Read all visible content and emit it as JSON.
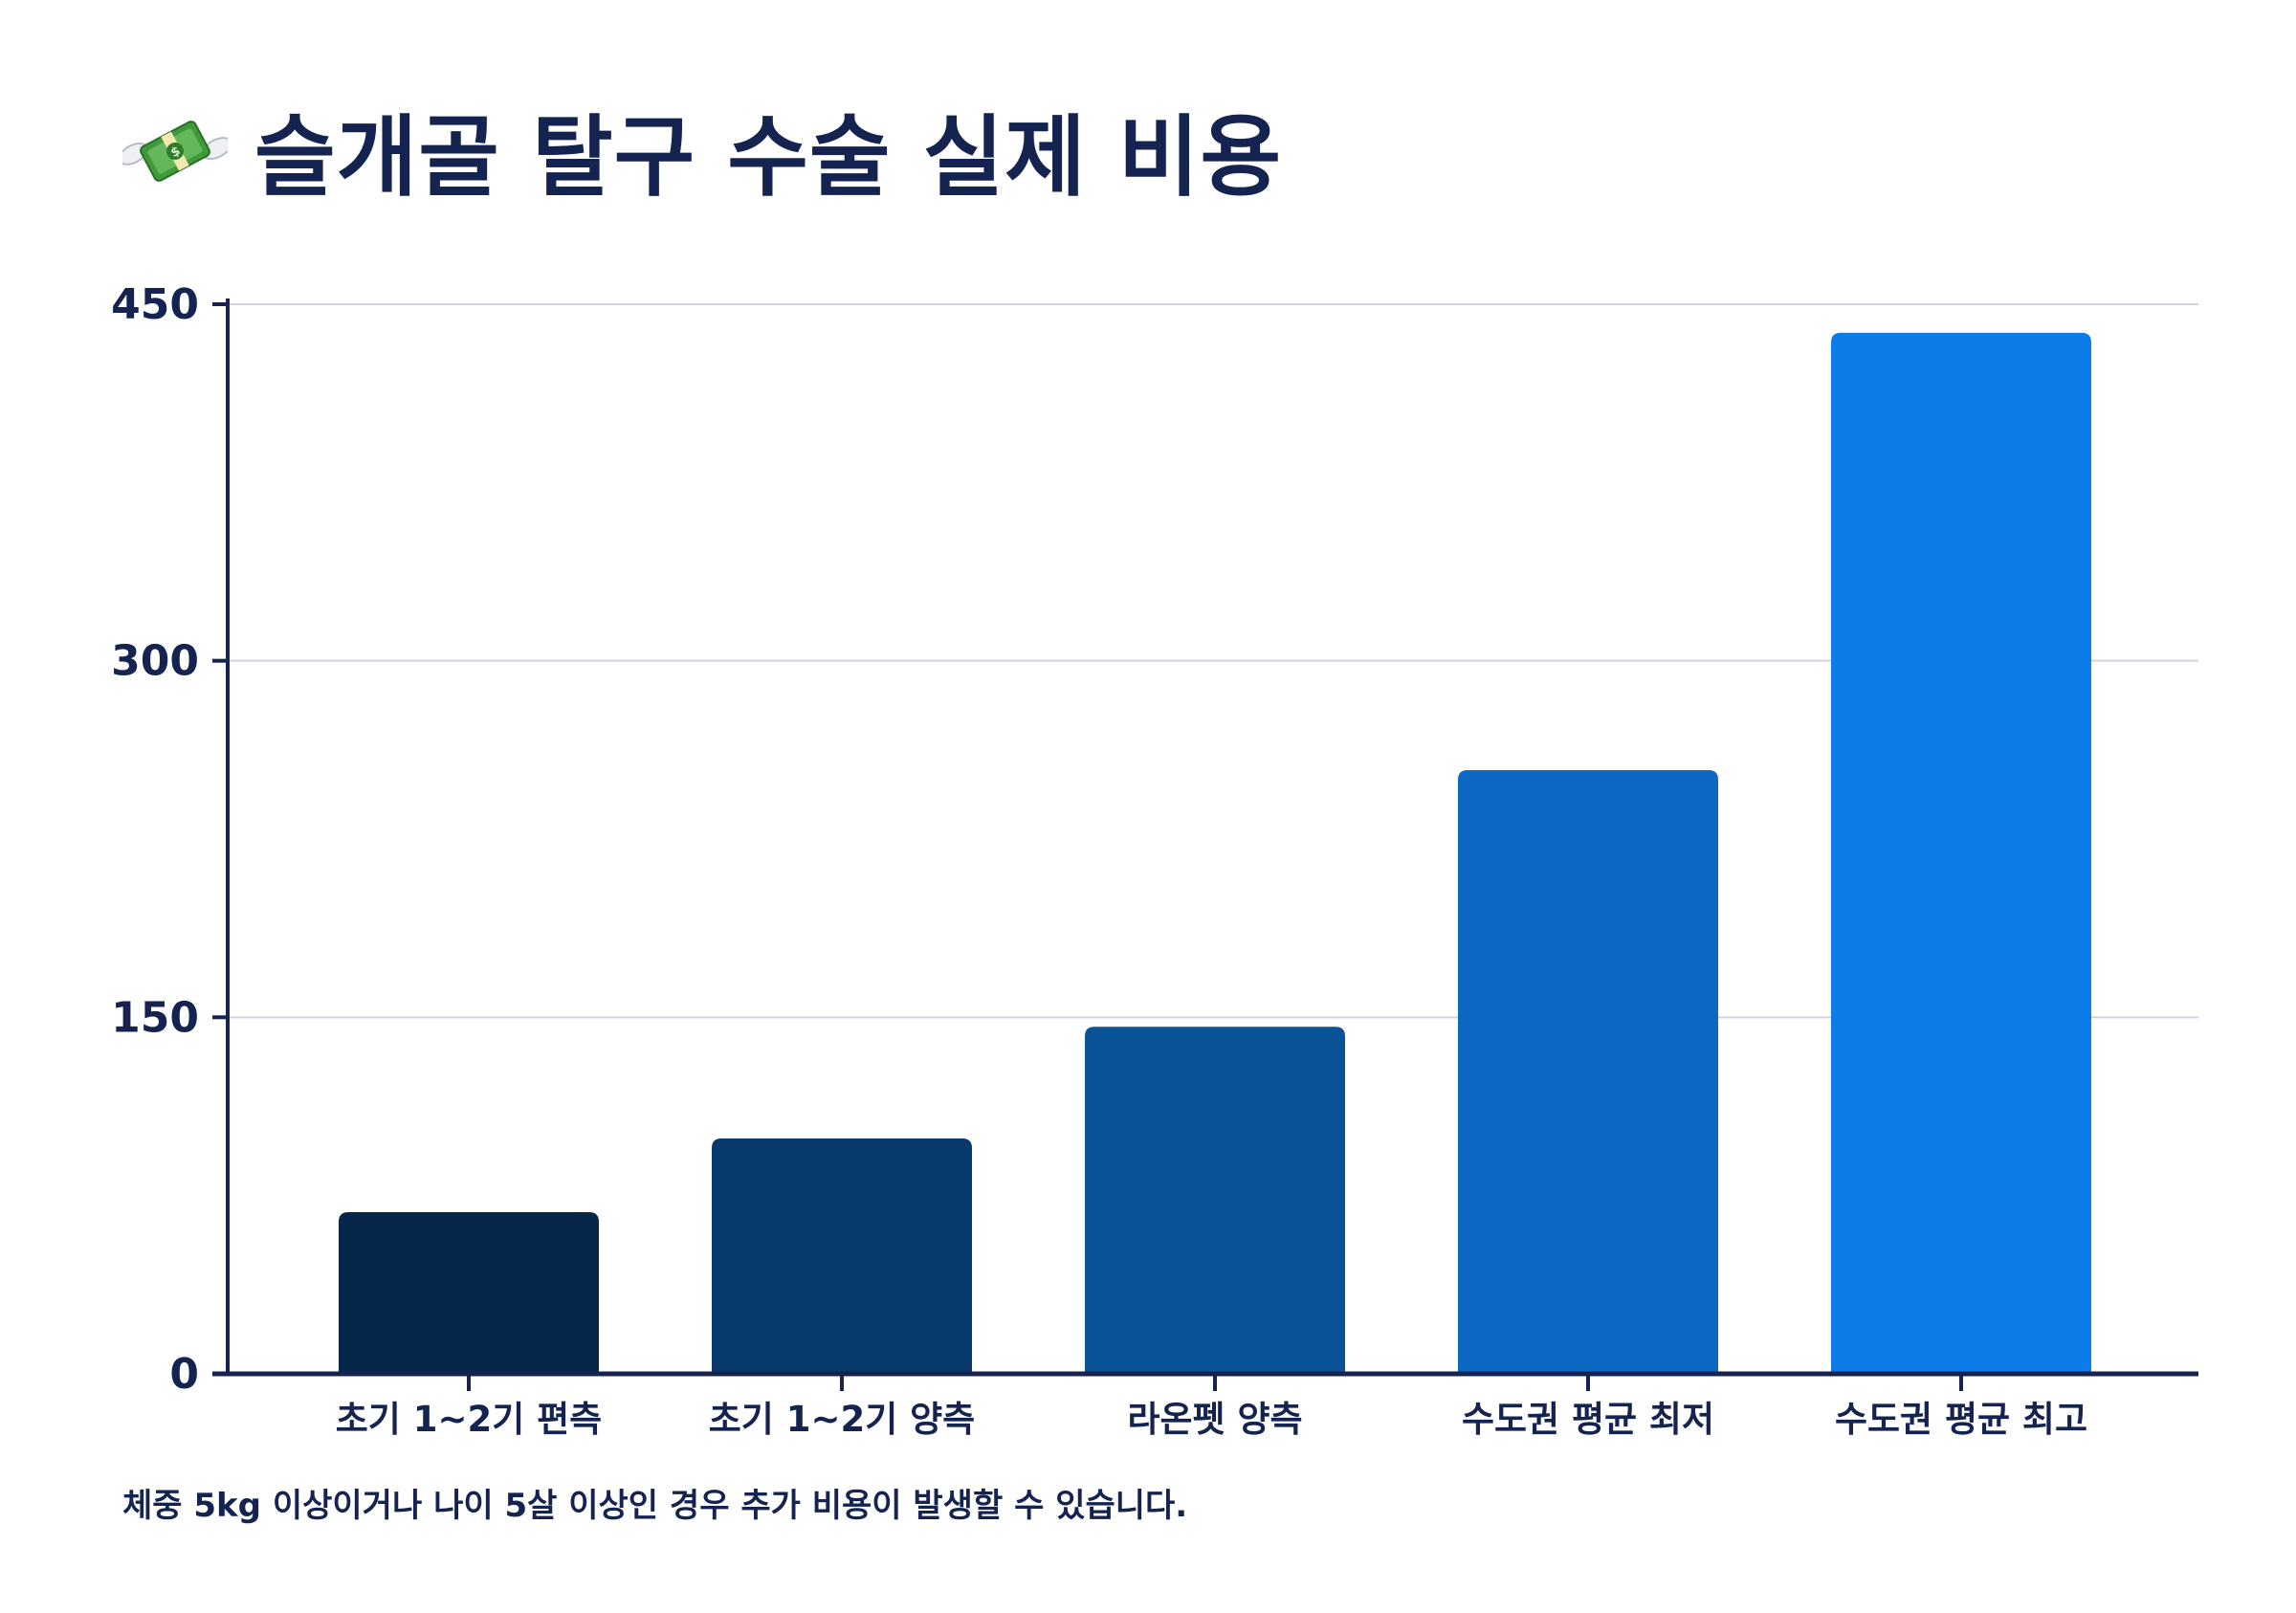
{
  "title": "슬개골 탈구 수술 실제 비용",
  "title_icon": "money-with-wings-icon",
  "footnote": "체중 5kg 이상이거나 나이 5살 이상인 경우 추가 비용이 발생할 수 있습니다.",
  "chart_data": {
    "type": "bar",
    "title": "슬개골 탈구 수술 실제 비용",
    "categories": [
      "초기 1~2기 편측",
      "초기 1~2기 양측",
      "라온펫 양측",
      "수도권 평균 최저",
      "수도권 평균 최고"
    ],
    "values": [
      68,
      99,
      146,
      254,
      438
    ],
    "colors": [
      "#06264a",
      "#083a6e",
      "#0a5396",
      "#0b69c4",
      "#0d7ce9"
    ],
    "xlabel": "",
    "ylabel": "",
    "ylim": [
      0,
      450
    ],
    "yticks": [
      0,
      150,
      300,
      450
    ],
    "grid": true,
    "legend": "none"
  }
}
